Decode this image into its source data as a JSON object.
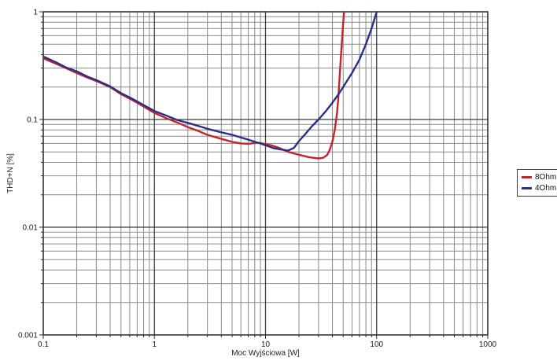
{
  "chart_data": {
    "type": "line",
    "title": "",
    "xlabel": "Moc Wyjściowa [W]",
    "ylabel": "THD+N [%]",
    "x_scale": "log",
    "y_scale": "log",
    "xlim": [
      0.1,
      1000
    ],
    "ylim": [
      0.001,
      1
    ],
    "x_ticks": [
      "0.1",
      "1",
      "10",
      "100",
      "1000"
    ],
    "y_ticks": [
      "1",
      "0.1",
      "0.01",
      "0.001"
    ],
    "grid": "log major+minor, on",
    "legend_position": "right-outside",
    "series": [
      {
        "name": "8Ohm",
        "color": "#c4242b",
        "points": [
          [
            0.1,
            0.37
          ],
          [
            0.13,
            0.33
          ],
          [
            0.16,
            0.3
          ],
          [
            0.2,
            0.27
          ],
          [
            0.25,
            0.245
          ],
          [
            0.3,
            0.228
          ],
          [
            0.4,
            0.2
          ],
          [
            0.5,
            0.172
          ],
          [
            0.63,
            0.152
          ],
          [
            0.8,
            0.132
          ],
          [
            1,
            0.115
          ],
          [
            1.3,
            0.102
          ],
          [
            1.6,
            0.094
          ],
          [
            2,
            0.085
          ],
          [
            2.5,
            0.078
          ],
          [
            3,
            0.072
          ],
          [
            4,
            0.066
          ],
          [
            5,
            0.062
          ],
          [
            6,
            0.06
          ],
          [
            7,
            0.0595
          ],
          [
            8,
            0.0605
          ],
          [
            9,
            0.0605
          ],
          [
            10,
            0.059
          ],
          [
            11,
            0.058
          ],
          [
            13,
            0.055
          ],
          [
            16,
            0.05
          ],
          [
            20,
            0.047
          ],
          [
            25,
            0.0445
          ],
          [
            30,
            0.0435
          ],
          [
            33,
            0.044
          ],
          [
            36,
            0.047
          ],
          [
            38,
            0.053
          ],
          [
            40,
            0.062
          ],
          [
            42,
            0.08
          ],
          [
            44,
            0.115
          ],
          [
            45,
            0.15
          ],
          [
            46,
            0.21
          ],
          [
            47,
            0.3
          ],
          [
            48,
            0.42
          ],
          [
            49,
            0.58
          ],
          [
            50,
            0.78
          ],
          [
            51,
            1.0
          ],
          [
            51.6,
            1.1
          ]
        ]
      },
      {
        "name": "4Ohm",
        "color": "#2b3087",
        "points": [
          [
            0.1,
            0.385
          ],
          [
            0.13,
            0.34
          ],
          [
            0.16,
            0.305
          ],
          [
            0.2,
            0.28
          ],
          [
            0.25,
            0.25
          ],
          [
            0.3,
            0.232
          ],
          [
            0.4,
            0.203
          ],
          [
            0.5,
            0.176
          ],
          [
            0.63,
            0.156
          ],
          [
            0.8,
            0.136
          ],
          [
            1,
            0.12
          ],
          [
            1.3,
            0.108
          ],
          [
            1.6,
            0.099
          ],
          [
            2,
            0.093
          ],
          [
            2.5,
            0.087
          ],
          [
            3,
            0.082
          ],
          [
            4,
            0.076
          ],
          [
            5,
            0.072
          ],
          [
            6,
            0.068
          ],
          [
            7,
            0.065
          ],
          [
            8,
            0.062
          ],
          [
            9,
            0.06
          ],
          [
            10,
            0.0575
          ],
          [
            12,
            0.054
          ],
          [
            14,
            0.0525
          ],
          [
            16,
            0.0515
          ],
          [
            18,
            0.0545
          ],
          [
            20,
            0.063
          ],
          [
            23,
            0.074
          ],
          [
            26,
            0.086
          ],
          [
            30,
            0.1
          ],
          [
            35,
            0.12
          ],
          [
            40,
            0.143
          ],
          [
            45,
            0.17
          ],
          [
            50,
            0.2
          ],
          [
            60,
            0.27
          ],
          [
            70,
            0.36
          ],
          [
            80,
            0.5
          ],
          [
            90,
            0.7
          ],
          [
            100,
            1.0
          ],
          [
            104,
            1.1
          ]
        ]
      }
    ],
    "colors": {
      "grid_major": "#3d3d3d",
      "grid_minor": "#8a8a8a",
      "axis": "#2e2e2e",
      "text": "#1a1a1a"
    }
  }
}
